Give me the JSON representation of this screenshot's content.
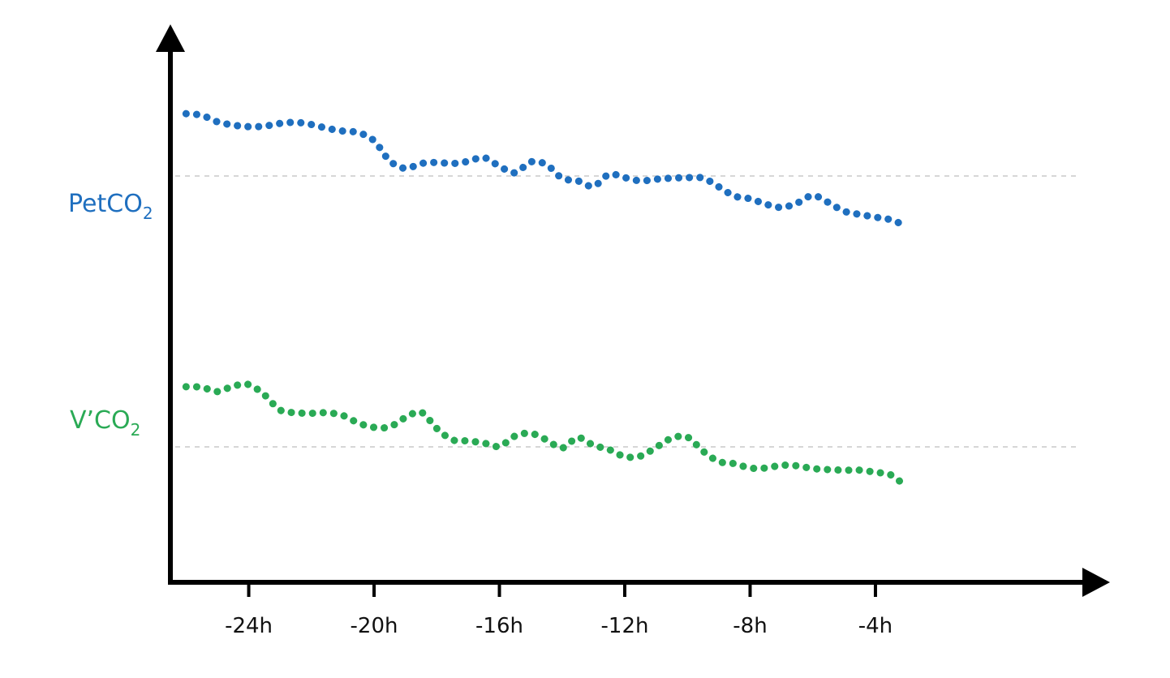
{
  "chart_data": {
    "type": "line",
    "title": "",
    "xlabel": "",
    "ylabel": "",
    "x_ticks": [
      "-24h",
      "-20h",
      "-16h",
      "-12h",
      "-8h",
      "-4h"
    ],
    "x_tick_values": [
      -24,
      -20,
      -16,
      -12,
      -8,
      -4
    ],
    "xlim": [
      -26.5,
      2.5
    ],
    "ylim": [
      0,
      100
    ],
    "grid": false,
    "series": [
      {
        "name": "PetCO",
        "name_subscript": "2",
        "color": "#1f6fbf",
        "reference_value": 75,
        "x": [
          -26,
          -25.5,
          -25,
          -24.5,
          -24,
          -23.5,
          -23,
          -22.5,
          -22,
          -21.5,
          -21,
          -20.5,
          -20,
          -19.5,
          -19,
          -18.5,
          -18,
          -17.5,
          -17,
          -16.5,
          -16,
          -15.5,
          -15,
          -14.5,
          -14,
          -13.5,
          -13,
          -12.5,
          -12,
          -11.5,
          -11,
          -10.5,
          -10,
          -9.5,
          -9,
          -8.5,
          -8,
          -7.5,
          -7,
          -6.5,
          -6,
          -5.5,
          -5,
          -4.5,
          -4,
          -3.5,
          -3
        ],
        "y": [
          86.5,
          86.2,
          85,
          84.4,
          84.1,
          84.2,
          84.7,
          84.9,
          84.5,
          83.8,
          83.3,
          83.0,
          81.5,
          77.8,
          76.4,
          77.3,
          77.5,
          77.3,
          77.7,
          78.4,
          76.8,
          75.6,
          77.6,
          77.1,
          74.6,
          74.1,
          73.1,
          75.3,
          74.7,
          74.1,
          74.4,
          74.6,
          74.7,
          74.6,
          73.0,
          71.3,
          70.8,
          69.8,
          69.2,
          70.0,
          71.4,
          70.1,
          68.5,
          67.9,
          67.4,
          66.9,
          65.7
        ]
      },
      {
        "name": "V’CO",
        "name_subscript": "2",
        "color": "#2aaa55",
        "reference_value": 25,
        "x": [
          -26,
          -25.5,
          -25,
          -24.5,
          -24,
          -23.5,
          -23,
          -22.5,
          -22,
          -21.5,
          -21,
          -20.5,
          -20,
          -19.5,
          -19,
          -18.5,
          -18,
          -17.5,
          -17,
          -16.5,
          -16,
          -15.5,
          -15,
          -14.5,
          -14,
          -13.5,
          -13,
          -12.5,
          -12,
          -11.5,
          -11,
          -10.5,
          -10,
          -9.5,
          -9,
          -8.5,
          -8,
          -7.5,
          -7,
          -6.5,
          -6,
          -5.5,
          -5,
          -4.5,
          -4,
          -3.5,
          -3
        ],
        "y": [
          36.1,
          36.0,
          35.2,
          36.2,
          36.5,
          34.6,
          31.8,
          31.3,
          31.2,
          31.3,
          30.8,
          29.4,
          28.6,
          28.7,
          30.4,
          31.4,
          28.4,
          26.3,
          26.1,
          25.7,
          25.1,
          27.0,
          27.5,
          26.3,
          24.8,
          26.7,
          25.3,
          24.5,
          23.2,
          23.3,
          24.9,
          26.6,
          26.8,
          24.2,
          22.3,
          21.9,
          21.1,
          21.1,
          21.6,
          21.5,
          21.0,
          20.8,
          20.7,
          20.7,
          20.3,
          19.8,
          17.5
        ]
      }
    ]
  }
}
